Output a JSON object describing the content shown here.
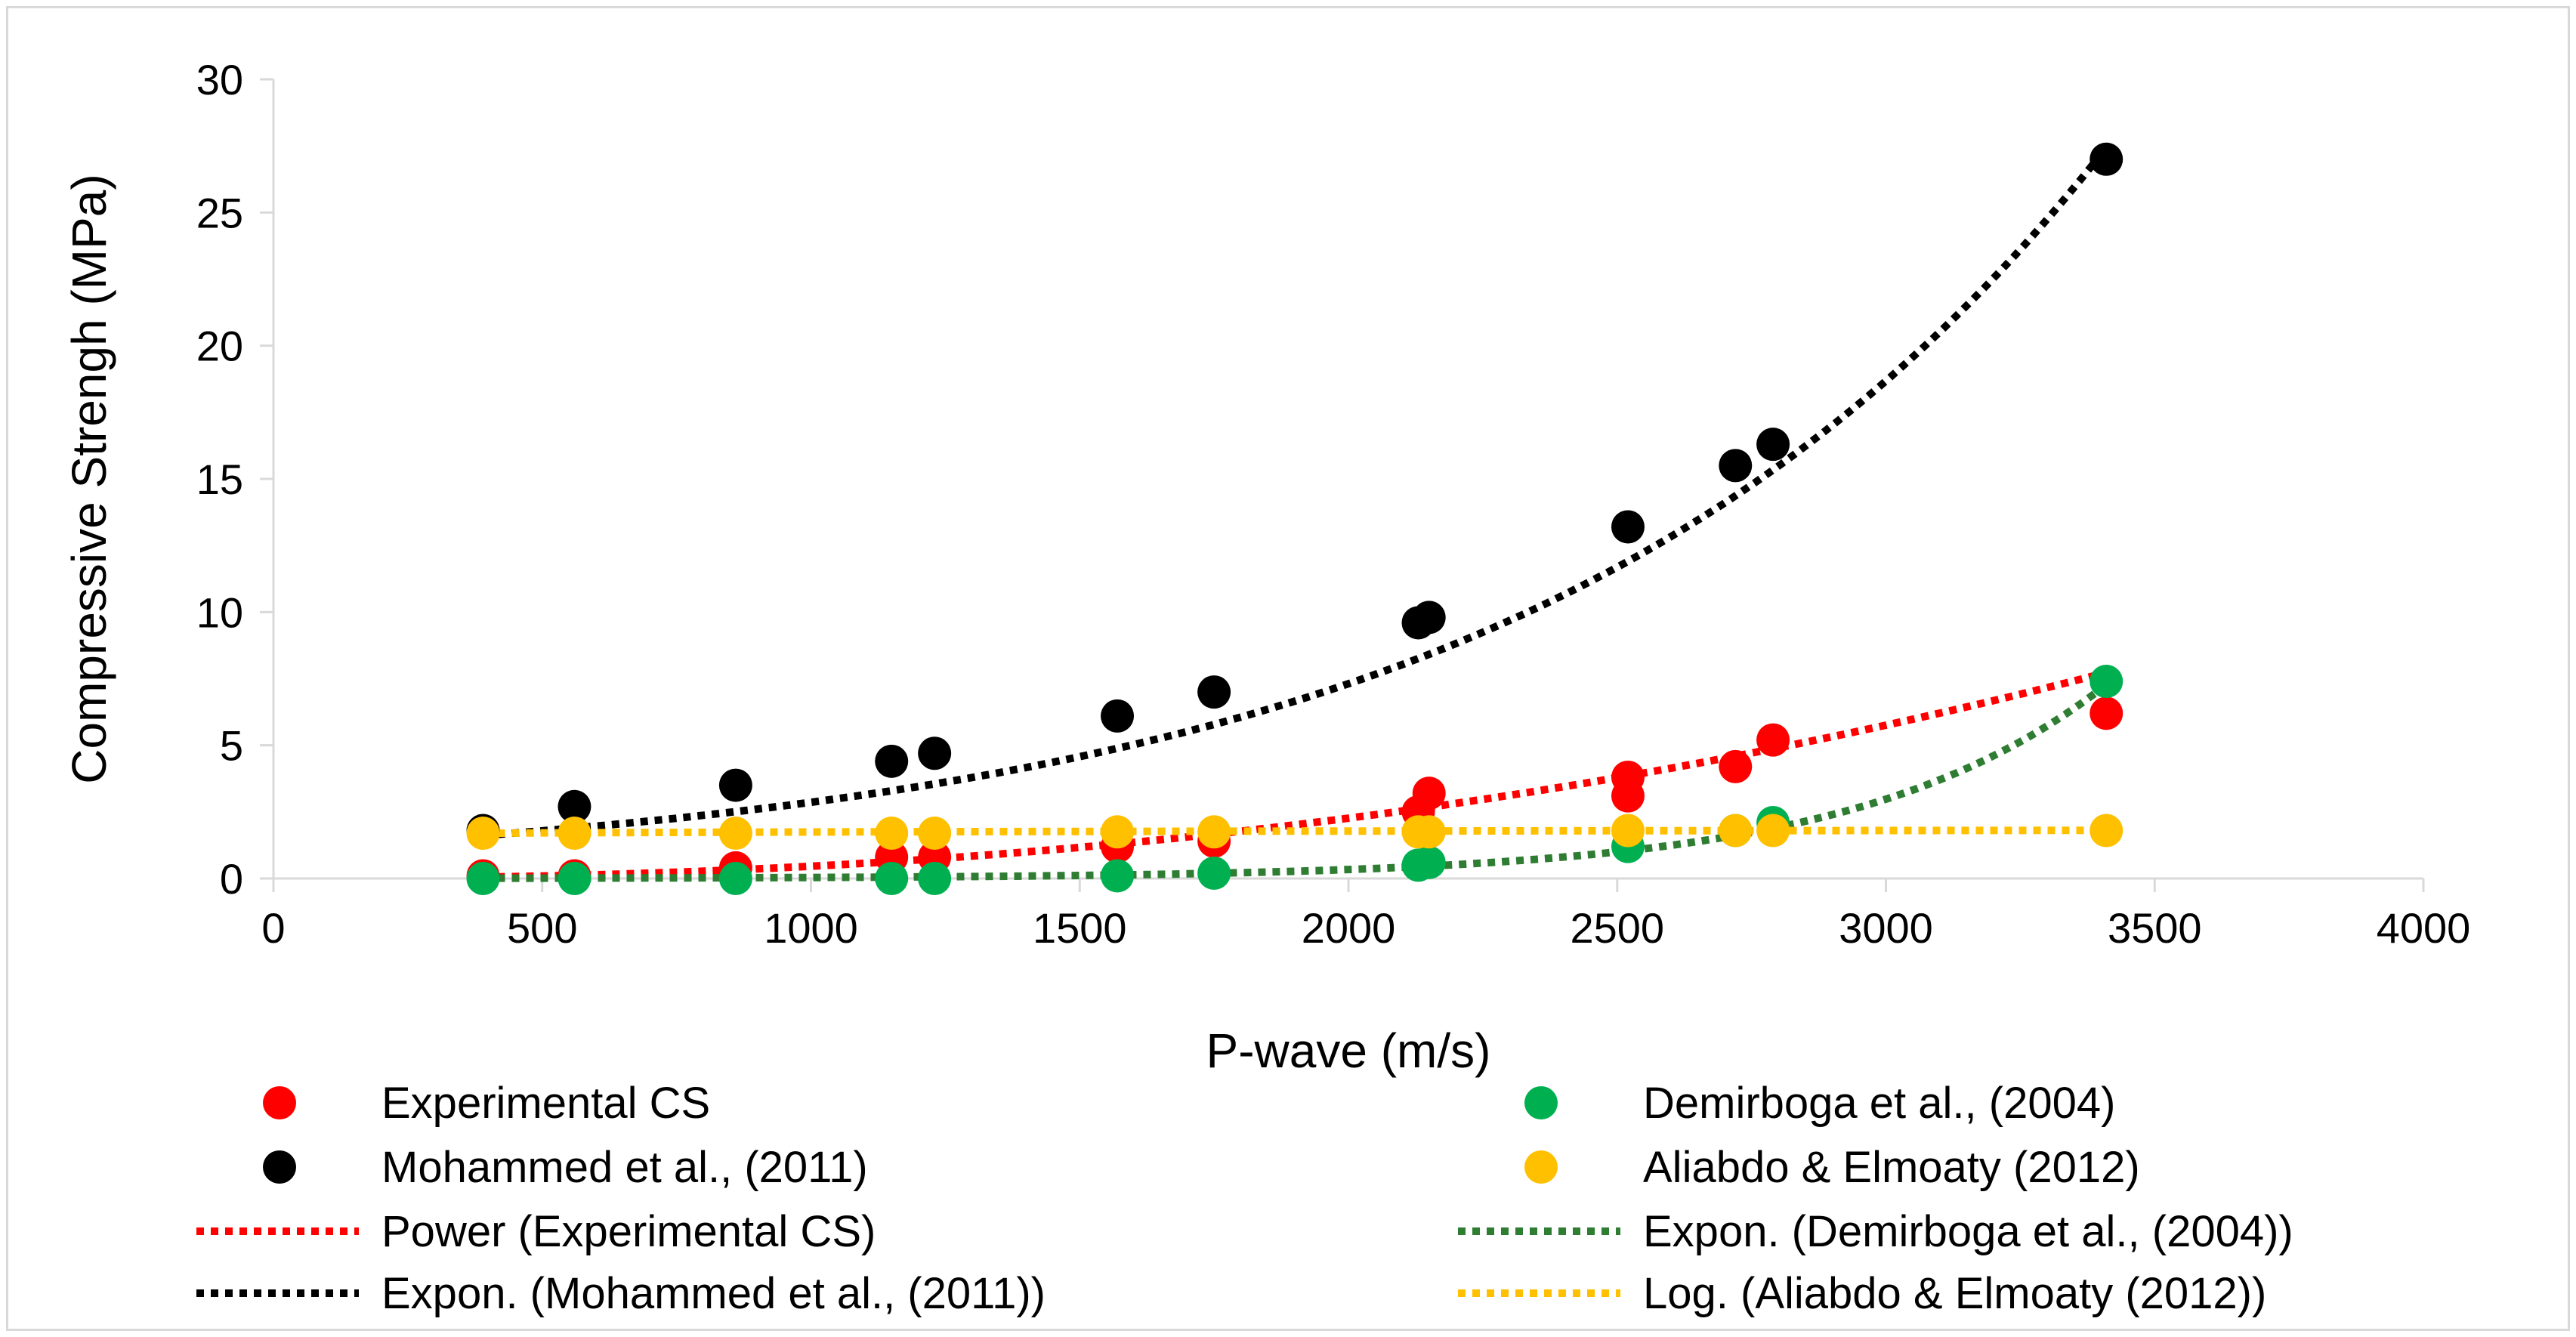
{
  "chart_data": {
    "type": "scatter",
    "xlabel": "P-wave (m/s)",
    "ylabel": "Compressive Strengh (MPa)",
    "xlim": [
      0,
      4000
    ],
    "ylim": [
      0,
      30
    ],
    "x_ticks": [
      0,
      500,
      1000,
      1500,
      2000,
      2500,
      3000,
      3500,
      4000
    ],
    "y_ticks": [
      0,
      5,
      10,
      15,
      20,
      25,
      30
    ],
    "grid": false,
    "legend_position": "bottom",
    "series": [
      {
        "name": "Experimental CS",
        "color": "#ff0000",
        "x": [
          390,
          560,
          860,
          1150,
          1230,
          1570,
          1750,
          2130,
          2150,
          2520,
          2520,
          2720,
          2790,
          3410
        ],
        "y": [
          0.1,
          0.1,
          0.4,
          0.8,
          0.8,
          1.2,
          1.4,
          2.5,
          3.2,
          3.1,
          3.8,
          4.2,
          5.2,
          6.2
        ]
      },
      {
        "name": "Mohammed et al., (2011)",
        "color": "#000000",
        "x": [
          390,
          560,
          860,
          1150,
          1230,
          1570,
          1750,
          2130,
          2150,
          2520,
          2720,
          2790,
          3410
        ],
        "y": [
          1.8,
          2.7,
          3.5,
          4.4,
          4.7,
          6.1,
          7.0,
          9.6,
          9.8,
          13.2,
          15.5,
          16.3,
          27.0
        ]
      },
      {
        "name": "Demirboga et al., (2004)",
        "color": "#00b050",
        "x": [
          390,
          560,
          860,
          1150,
          1230,
          1570,
          1750,
          2130,
          2150,
          2520,
          2720,
          2790,
          3410
        ],
        "y": [
          0.0,
          0.0,
          0.0,
          0.0,
          0.0,
          0.1,
          0.2,
          0.5,
          0.6,
          1.2,
          1.8,
          2.1,
          7.4
        ]
      },
      {
        "name": "Aliabdo & Elmoaty (2012)",
        "color": "#ffc000",
        "x": [
          390,
          560,
          860,
          1150,
          1230,
          1570,
          1750,
          2130,
          2150,
          2520,
          2720,
          2790,
          3410
        ],
        "y": [
          1.7,
          1.7,
          1.7,
          1.7,
          1.7,
          1.75,
          1.75,
          1.75,
          1.75,
          1.8,
          1.8,
          1.8,
          1.8
        ]
      }
    ],
    "trendlines": [
      {
        "name": "Power (Experimental CS)",
        "color": "#ff0000",
        "model": "power",
        "coef": 5.79e-08,
        "exp": 2.3,
        "x_range": [
          390,
          3410
        ]
      },
      {
        "name": "Expon. (Mohammed et al., (2011))",
        "color": "#000000",
        "model": "exponential",
        "coef": 1.12,
        "rate": 0.000938,
        "x_range": [
          390,
          3410
        ]
      },
      {
        "name": "Expon. (Demirboga et al., (2004))",
        "color": "#2e7d32",
        "model": "exponential",
        "coef": 0.0043,
        "rate": 0.00218,
        "x_range": [
          390,
          3410
        ]
      },
      {
        "name": "Log. (Aliabdo & Elmoaty (2012))",
        "color": "#ffc000",
        "model": "logarithmic",
        "coef": 0.05,
        "intercept": 1.4,
        "x_range": [
          390,
          3410
        ]
      }
    ],
    "legend": [
      {
        "label": "Experimental CS",
        "kind": "marker",
        "color": "#ff0000"
      },
      {
        "label": "Demirboga et al., (2004)",
        "kind": "marker",
        "color": "#00b050"
      },
      {
        "label": "Mohammed et al., (2011)",
        "kind": "marker",
        "color": "#000000"
      },
      {
        "label": "Aliabdo & Elmoaty (2012)",
        "kind": "marker",
        "color": "#ffc000"
      },
      {
        "label": "Power (Experimental CS)",
        "kind": "line",
        "color": "#ff0000"
      },
      {
        "label": "Expon. (Demirboga et al., (2004))",
        "kind": "line",
        "color": "#2e7d32"
      },
      {
        "label": "Expon. (Mohammed et al., (2011))",
        "kind": "line",
        "color": "#000000"
      },
      {
        "label": "Log. (Aliabdo & Elmoaty (2012))",
        "kind": "line",
        "color": "#ffc000"
      }
    ]
  }
}
